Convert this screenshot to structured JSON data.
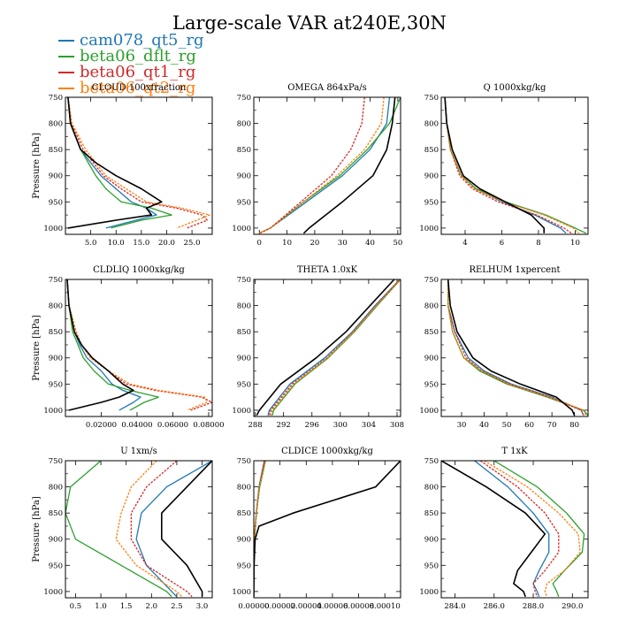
{
  "figure": {
    "title": "Large-scale VAR at240E,30N",
    "legend": [
      {
        "name": "cam078_qt5_rg",
        "color": "#1f77b4"
      },
      {
        "name": "beta06_dflt_rg",
        "color": "#2ca02c"
      },
      {
        "name": "beta06_qt1_rg",
        "color": "#d62728"
      },
      {
        "name": "beta06_qt2_rg",
        "color": "#ff7f0e"
      }
    ],
    "extra_line_color": "#000000",
    "ylabel": "Pressure [hPa]"
  },
  "chart_data": [
    {
      "type": "line",
      "title": "CLOUD 100xfraction",
      "ylabel": "Pressure [hPa]",
      "xlim": [
        0,
        29
      ],
      "ylim": [
        750,
        1012
      ],
      "y_reversed": true,
      "xticks": [
        5,
        10,
        15,
        20,
        25
      ],
      "xtick_labels": [
        "5.0",
        "10.0",
        "15.0",
        "20.0",
        "25.0"
      ],
      "yticks": [
        750,
        800,
        850,
        900,
        950,
        1000
      ],
      "y": [
        750,
        800,
        850,
        875,
        900,
        925,
        950,
        962,
        975,
        985,
        1000
      ],
      "series": [
        {
          "name": "cam078_qt5_rg",
          "values": [
            0.5,
            1,
            3,
            5,
            7,
            10,
            13,
            16,
            18,
            14,
            8
          ]
        },
        {
          "name": "beta06_dflt_rg",
          "values": [
            0.5,
            1,
            3,
            4.5,
            6,
            8,
            11,
            17,
            21,
            15,
            9
          ]
        },
        {
          "name": "beta06_qt1_rg",
          "values": [
            0.5,
            1.2,
            3.5,
            5.5,
            7.5,
            11,
            15,
            22,
            27,
            28,
            24
          ]
        },
        {
          "name": "beta06_qt2_rg",
          "values": [
            0.5,
            1.3,
            4,
            6,
            8,
            12,
            16,
            23,
            28.5,
            26,
            22
          ]
        },
        {
          "name": "",
          "values": [
            0.5,
            1,
            3,
            6,
            10,
            15,
            19,
            16,
            17,
            10,
            0.5
          ]
        }
      ]
    },
    {
      "type": "line",
      "title": "OMEGA  864xPa/s",
      "xlim": [
        -2,
        51
      ],
      "ylim": [
        750,
        1012
      ],
      "y_reversed": true,
      "xticks": [
        0,
        10,
        20,
        30,
        40,
        50
      ],
      "xtick_labels": [
        "0",
        "10",
        "20",
        "30",
        "40",
        "50"
      ],
      "yticks": [
        750,
        800,
        850,
        900,
        950,
        1000
      ],
      "y": [
        750,
        800,
        850,
        900,
        950,
        1000,
        1010
      ],
      "series": [
        {
          "name": "cam078_qt5_rg",
          "values": [
            47,
            46,
            40,
            30,
            17,
            4,
            0
          ]
        },
        {
          "name": "beta06_dflt_rg",
          "values": [
            51,
            47,
            39,
            29,
            16,
            4,
            0
          ]
        },
        {
          "name": "beta06_qt1_rg",
          "values": [
            38,
            37,
            33,
            26,
            15,
            4,
            0
          ]
        },
        {
          "name": "beta06_qt2_rg",
          "values": [
            45,
            44,
            38,
            28,
            16,
            4,
            0
          ]
        },
        {
          "name": "",
          "values": [
            49,
            48,
            46,
            41,
            30,
            18,
            16
          ]
        }
      ]
    },
    {
      "type": "line",
      "title": "Q  1000xkg/kg",
      "xlim": [
        2.7,
        10.7
      ],
      "ylim": [
        750,
        1012
      ],
      "y_reversed": true,
      "xticks": [
        4,
        6,
        8,
        10
      ],
      "xtick_labels": [
        "4",
        "6",
        "8",
        "10"
      ],
      "yticks": [
        750,
        800,
        850,
        900,
        950,
        1000
      ],
      "y": [
        750,
        800,
        850,
        900,
        925,
        950,
        975,
        1000,
        1010
      ],
      "series": [
        {
          "name": "cam078_qt5_rg",
          "values": [
            2.9,
            3.0,
            3.2,
            3.8,
            4.6,
            6.0,
            7.8,
            9.2,
            9.5
          ]
        },
        {
          "name": "beta06_dflt_rg",
          "values": [
            2.9,
            3.0,
            3.2,
            3.8,
            4.6,
            6.2,
            8.4,
            10.0,
            10.6
          ]
        },
        {
          "name": "beta06_qt1_rg",
          "values": [
            2.9,
            3.0,
            3.2,
            3.7,
            4.4,
            5.8,
            7.9,
            9.4,
            9.8
          ]
        },
        {
          "name": "beta06_qt2_rg",
          "values": [
            2.9,
            3.0,
            3.2,
            3.8,
            4.5,
            6.1,
            8.3,
            9.9,
            10.2
          ]
        },
        {
          "name": "",
          "values": [
            2.9,
            3.0,
            3.3,
            3.9,
            4.8,
            6.2,
            7.6,
            8.3,
            8.3
          ]
        }
      ]
    },
    {
      "type": "line",
      "title": "CLDLIQ  1000xkg/kg",
      "ylabel": "Pressure [hPa]",
      "xlim": [
        0,
        0.082
      ],
      "ylim": [
        750,
        1012
      ],
      "y_reversed": true,
      "xticks": [
        0.02,
        0.04,
        0.06,
        0.08
      ],
      "xtick_labels": [
        "0.02000",
        "0.04000",
        "0.06000",
        "0.08000"
      ],
      "yticks": [
        750,
        800,
        850,
        900,
        950,
        1000
      ],
      "y": [
        750,
        800,
        850,
        875,
        900,
        925,
        950,
        962,
        975,
        985,
        1000
      ],
      "series": [
        {
          "name": "cam078_qt5_rg",
          "values": [
            0.001,
            0.002,
            0.005,
            0.008,
            0.012,
            0.02,
            0.026,
            0.032,
            0.042,
            0.038,
            0.03
          ]
        },
        {
          "name": "beta06_dflt_rg",
          "values": [
            0.001,
            0.002,
            0.004,
            0.007,
            0.01,
            0.016,
            0.024,
            0.036,
            0.052,
            0.044,
            0.036
          ]
        },
        {
          "name": "beta06_qt1_rg",
          "values": [
            0.001,
            0.002,
            0.006,
            0.009,
            0.014,
            0.024,
            0.034,
            0.05,
            0.076,
            0.082,
            0.07
          ]
        },
        {
          "name": "beta06_qt2_rg",
          "values": [
            0.001,
            0.002,
            0.006,
            0.009,
            0.014,
            0.024,
            0.036,
            0.052,
            0.078,
            0.079,
            0.068
          ]
        },
        {
          "name": "",
          "values": [
            0.001,
            0.002,
            0.005,
            0.009,
            0.015,
            0.024,
            0.032,
            0.038,
            0.03,
            0.02,
            0.002
          ]
        }
      ]
    },
    {
      "type": "line",
      "title": "THETA  1.0xK",
      "xlim": [
        287.8,
        308.5
      ],
      "ylim": [
        750,
        1012
      ],
      "y_reversed": true,
      "xticks": [
        288,
        292,
        296,
        300,
        304,
        308
      ],
      "xtick_labels": [
        "288",
        "292",
        "296",
        "300",
        "304",
        "308"
      ],
      "yticks": [
        750,
        800,
        850,
        900,
        950,
        1000
      ],
      "y": [
        750,
        800,
        850,
        900,
        950,
        1000,
        1010
      ],
      "series": [
        {
          "name": "cam078_qt5_rg",
          "values": [
            308.4,
            304.9,
            301.7,
            297.8,
            292.9,
            290.0,
            289.8
          ]
        },
        {
          "name": "beta06_dflt_rg",
          "values": [
            308.5,
            305.2,
            302.0,
            298.3,
            293.6,
            290.6,
            290.4
          ]
        },
        {
          "name": "beta06_qt1_rg",
          "values": [
            308.4,
            305.0,
            301.8,
            298.1,
            293.2,
            290.2,
            290.0
          ]
        },
        {
          "name": "beta06_qt2_rg",
          "values": [
            308.5,
            305.1,
            301.9,
            298.2,
            293.4,
            290.4,
            290.2
          ]
        },
        {
          "name": "",
          "values": [
            307.6,
            304.2,
            300.8,
            296.6,
            291.6,
            288.6,
            288.2
          ]
        }
      ]
    },
    {
      "type": "line",
      "title": "RELHUM  1xpercent",
      "xlim": [
        21,
        86
      ],
      "ylim": [
        750,
        1012
      ],
      "y_reversed": true,
      "xticks": [
        30,
        40,
        50,
        60,
        70,
        80
      ],
      "xtick_labels": [
        "30",
        "40",
        "50",
        "60",
        "70",
        "80"
      ],
      "yticks": [
        750,
        800,
        850,
        900,
        950,
        1000
      ],
      "y": [
        750,
        800,
        850,
        900,
        925,
        950,
        975,
        1000,
        1010
      ],
      "series": [
        {
          "name": "cam078_qt5_rg",
          "values": [
            24,
            24,
            27,
            33,
            40,
            52,
            70,
            83,
            84
          ]
        },
        {
          "name": "beta06_dflt_rg",
          "values": [
            24,
            24,
            26,
            31,
            38,
            50,
            68,
            84,
            86
          ]
        },
        {
          "name": "beta06_qt1_rg",
          "values": [
            24,
            24,
            27,
            32,
            39,
            51,
            69,
            83,
            84
          ]
        },
        {
          "name": "beta06_qt2_rg",
          "values": [
            24,
            24,
            26,
            31,
            39,
            51,
            69,
            84,
            85
          ]
        },
        {
          "name": "",
          "values": [
            24,
            25,
            28,
            35,
            43,
            56,
            72,
            79,
            80
          ]
        }
      ]
    },
    {
      "type": "line",
      "title": "U  1xm/s",
      "ylabel": "Pressure [hPa]",
      "xlim": [
        0.3,
        3.2
      ],
      "ylim": [
        750,
        1012
      ],
      "y_reversed": true,
      "xticks": [
        0.5,
        1.0,
        1.5,
        2.0,
        2.5,
        3.0
      ],
      "xtick_labels": [
        "0.5",
        "1.0",
        "1.5",
        "2.0",
        "2.5",
        "3.0"
      ],
      "yticks": [
        750,
        800,
        850,
        900,
        950,
        1000
      ],
      "y": [
        750,
        800,
        850,
        900,
        950,
        1000,
        1010
      ],
      "series": [
        {
          "name": "cam078_qt5_rg",
          "values": [
            3.2,
            2.3,
            1.8,
            1.7,
            1.9,
            2.4,
            2.5
          ]
        },
        {
          "name": "beta06_dflt_rg",
          "values": [
            1.0,
            0.4,
            0.3,
            0.5,
            1.4,
            2.3,
            2.4
          ]
        },
        {
          "name": "beta06_qt1_rg",
          "values": [
            2.5,
            1.9,
            1.6,
            1.6,
            1.9,
            2.7,
            2.8
          ]
        },
        {
          "name": "beta06_qt2_rg",
          "values": [
            2.1,
            1.6,
            1.4,
            1.3,
            1.7,
            2.5,
            2.6
          ]
        },
        {
          "name": "",
          "values": [
            3.2,
            2.7,
            2.2,
            2.2,
            2.7,
            3.0,
            3.0
          ]
        }
      ]
    },
    {
      "type": "line",
      "title": "CLDICE  1000xkg/kg",
      "xlim": [
        0,
        0.000112
      ],
      "ylim": [
        750,
        1012
      ],
      "y_reversed": true,
      "xticks": [
        0,
        2e-05,
        4e-05,
        6e-05,
        8e-05,
        0.0001
      ],
      "xtick_labels": [
        "0.00000",
        "0.00002",
        "0.00004",
        "0.00006",
        "0.00008",
        "0.00010"
      ],
      "yticks": [
        750,
        800,
        850,
        900,
        950,
        1000
      ],
      "y": [
        750,
        800,
        850,
        875,
        900,
        950,
        1000,
        1010
      ],
      "series": [
        {
          "name": "cam078_qt5_rg",
          "values": [
            8e-06,
            4e-06,
            2e-06,
            1.2e-06,
            6e-07,
            1e-07,
            0,
            0
          ]
        },
        {
          "name": "beta06_dflt_rg",
          "values": [
            9e-06,
            4.5e-06,
            2e-06,
            1.2e-06,
            6e-07,
            1e-07,
            0,
            0
          ]
        },
        {
          "name": "beta06_qt1_rg",
          "values": [
            8e-06,
            4e-06,
            1.8e-06,
            1.1e-06,
            5e-07,
            1e-07,
            0,
            0
          ]
        },
        {
          "name": "beta06_qt2_rg",
          "values": [
            9e-06,
            4.2e-06,
            2e-06,
            1.2e-06,
            6e-07,
            1e-07,
            0,
            0
          ]
        },
        {
          "name": "",
          "values": [
            0.000112,
            9.3e-05,
            3e-05,
            4e-06,
            1e-06,
            2e-07,
            0,
            0
          ]
        }
      ]
    },
    {
      "type": "line",
      "title": "T  1xK",
      "xlim": [
        283.3,
        290.8
      ],
      "ylim": [
        750,
        1012
      ],
      "y_reversed": true,
      "xticks": [
        284,
        286,
        288,
        290
      ],
      "xtick_labels": [
        "284.0",
        "286.0",
        "288.0",
        "290.0"
      ],
      "yticks": [
        750,
        800,
        850,
        900,
        950,
        1000
      ],
      "y": [
        750,
        800,
        850,
        890,
        925,
        960,
        985,
        1000,
        1010
      ],
      "series": [
        {
          "name": "cam078_qt5_rg",
          "values": [
            285.0,
            286.7,
            288.0,
            288.8,
            288.8,
            288.3,
            288.0,
            288.2,
            288.3
          ]
        },
        {
          "name": "beta06_dflt_rg",
          "values": [
            286.0,
            288.2,
            289.7,
            290.6,
            290.5,
            289.6,
            289.0,
            289.2,
            289.3
          ]
        },
        {
          "name": "beta06_qt1_rg",
          "values": [
            285.3,
            287.2,
            288.6,
            289.3,
            289.3,
            288.6,
            288.0,
            288.1,
            288.2
          ]
        },
        {
          "name": "beta06_qt2_rg",
          "values": [
            285.5,
            287.7,
            289.3,
            290.3,
            290.4,
            289.6,
            288.7,
            288.6,
            288.7
          ]
        },
        {
          "name": "",
          "values": [
            283.3,
            285.6,
            287.6,
            288.6,
            287.9,
            287.2,
            287.0,
            287.5,
            287.6
          ]
        }
      ]
    }
  ]
}
